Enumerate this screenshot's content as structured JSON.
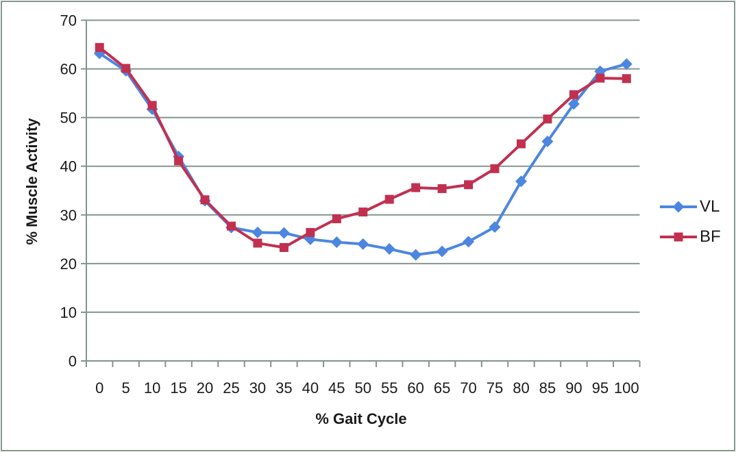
{
  "chart_data": {
    "type": "line",
    "title": "",
    "xlabel": "% Gait Cycle",
    "ylabel": "% Muscle Activity",
    "x": [
      0,
      5,
      10,
      15,
      20,
      25,
      30,
      35,
      40,
      45,
      50,
      55,
      60,
      65,
      70,
      75,
      80,
      85,
      90,
      95,
      100
    ],
    "ylim": [
      0,
      70
    ],
    "yticks": [
      0,
      10,
      20,
      30,
      40,
      50,
      60,
      70
    ],
    "grid": true,
    "legend_position": "right",
    "axis_color": "#83928e",
    "grid_color": "#85948f",
    "text_color": "#1a1a1a",
    "series": [
      {
        "name": "VL",
        "color": "#4c86e0",
        "marker": "diamond",
        "values": [
          63.2,
          59.6,
          51.7,
          42.0,
          32.9,
          27.4,
          26.4,
          26.3,
          25.0,
          24.4,
          24.0,
          23.0,
          21.8,
          22.5,
          24.5,
          27.5,
          36.9,
          45.1,
          52.8,
          59.5,
          61.0
        ]
      },
      {
        "name": "BF",
        "color": "#c13050",
        "marker": "square",
        "values": [
          64.4,
          60.1,
          52.5,
          41.1,
          33.1,
          27.7,
          24.2,
          23.3,
          26.4,
          29.2,
          30.6,
          33.2,
          35.6,
          35.4,
          36.2,
          39.5,
          44.6,
          49.7,
          54.7,
          58.1,
          58.0
        ]
      }
    ]
  }
}
